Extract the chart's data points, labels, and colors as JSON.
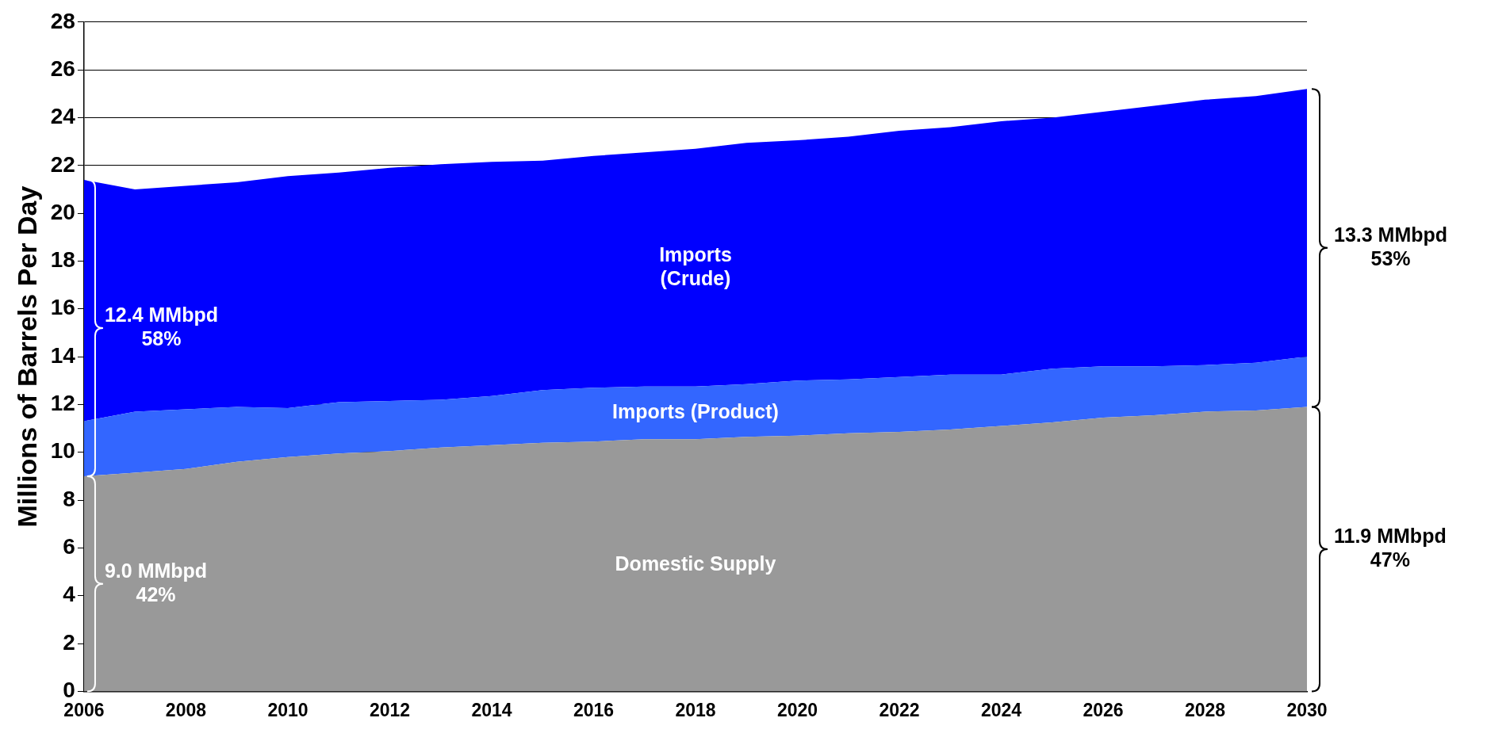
{
  "chart_data": {
    "type": "area",
    "stacked": true,
    "ylabel": "Millions of Barrels Per Day",
    "x": [
      2006,
      2007,
      2008,
      2009,
      2010,
      2011,
      2012,
      2013,
      2014,
      2015,
      2016,
      2017,
      2018,
      2019,
      2020,
      2021,
      2022,
      2023,
      2024,
      2025,
      2026,
      2027,
      2028,
      2029,
      2030
    ],
    "xlim": [
      2006,
      2030
    ],
    "xticks": [
      2006,
      2008,
      2010,
      2012,
      2014,
      2016,
      2018,
      2020,
      2022,
      2024,
      2026,
      2028,
      2030
    ],
    "ylim": [
      0,
      28
    ],
    "yticks": [
      0,
      2,
      4,
      6,
      8,
      10,
      12,
      14,
      16,
      18,
      20,
      22,
      24,
      26,
      28
    ],
    "grid": "y",
    "legend": false,
    "series": [
      {
        "name": "Domestic Supply",
        "color": "#999999",
        "values": [
          9.0,
          9.15,
          9.3,
          9.6,
          9.8,
          9.95,
          10.05,
          10.2,
          10.3,
          10.4,
          10.45,
          10.55,
          10.55,
          10.65,
          10.7,
          10.8,
          10.85,
          10.95,
          11.1,
          11.25,
          11.45,
          11.55,
          11.7,
          11.75,
          11.9
        ]
      },
      {
        "name": "Imports (Product)",
        "color": "#3366ff",
        "values": [
          2.3,
          2.55,
          2.5,
          2.3,
          2.05,
          2.15,
          2.1,
          2.0,
          2.05,
          2.2,
          2.25,
          2.2,
          2.2,
          2.2,
          2.3,
          2.25,
          2.3,
          2.3,
          2.15,
          2.25,
          2.15,
          2.05,
          1.95,
          2.0,
          2.1
        ]
      },
      {
        "name": "Imports\n(Crude)",
        "color": "#0000ff",
        "values": [
          10.1,
          9.3,
          9.35,
          9.4,
          9.7,
          9.6,
          9.75,
          9.85,
          9.8,
          9.6,
          9.7,
          9.8,
          9.95,
          10.1,
          10.05,
          10.15,
          10.3,
          10.35,
          10.6,
          10.5,
          10.65,
          10.9,
          11.1,
          11.15,
          11.2
        ]
      }
    ],
    "annotations": [
      "12.4 MMbpd\n58%",
      "9.0 MMbpd\n42%",
      "13.3 MMbpd\n53%",
      "11.9 MMbpd\n47%"
    ]
  }
}
